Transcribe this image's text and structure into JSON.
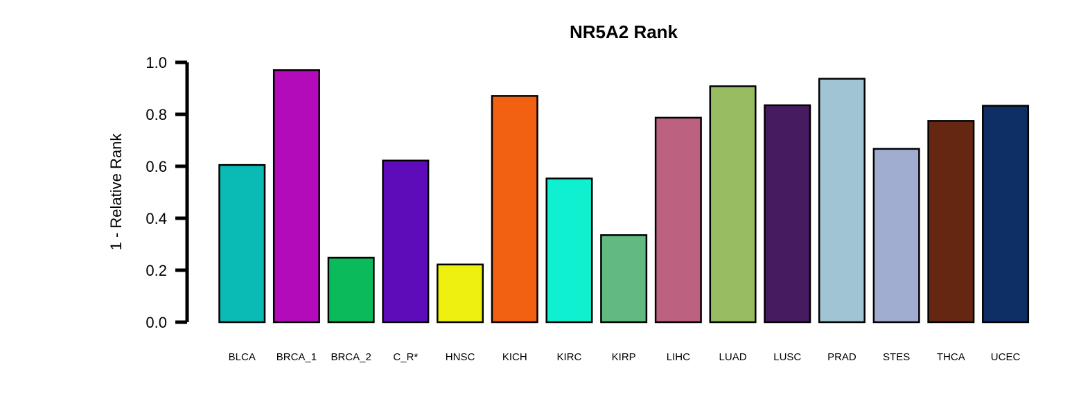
{
  "chart_data": {
    "type": "bar",
    "title": "NR5A2 Rank",
    "xlabel": "",
    "ylabel": "1 - Relative Rank",
    "ylim": [
      0,
      1
    ],
    "yticks": [
      "0.0",
      "0.2",
      "0.4",
      "0.6",
      "0.8",
      "1.0"
    ],
    "grid": false,
    "categories": [
      "BLCA",
      "BRCA_1",
      "BRCA_2",
      "C_R*",
      "HNSC",
      "KICH",
      "KIRC",
      "KIRP",
      "LIHC",
      "LUAD",
      "LUSC",
      "PRAD",
      "STES",
      "THCA",
      "UCEC"
    ],
    "values": [
      0.605,
      0.97,
      0.248,
      0.622,
      0.222,
      0.871,
      0.553,
      0.335,
      0.787,
      0.908,
      0.835,
      0.937,
      0.667,
      0.775,
      0.833
    ],
    "colors": [
      "#0ABAB5",
      "#B40BBA",
      "#0BBA5A",
      "#5E0BBA",
      "#EEF00D",
      "#F26011",
      "#0EF0D0",
      "#62BA80",
      "#BD6180",
      "#97BC62",
      "#461B60",
      "#A0C4D3",
      "#A0ADD1",
      "#652712",
      "#0E2E66"
    ]
  }
}
